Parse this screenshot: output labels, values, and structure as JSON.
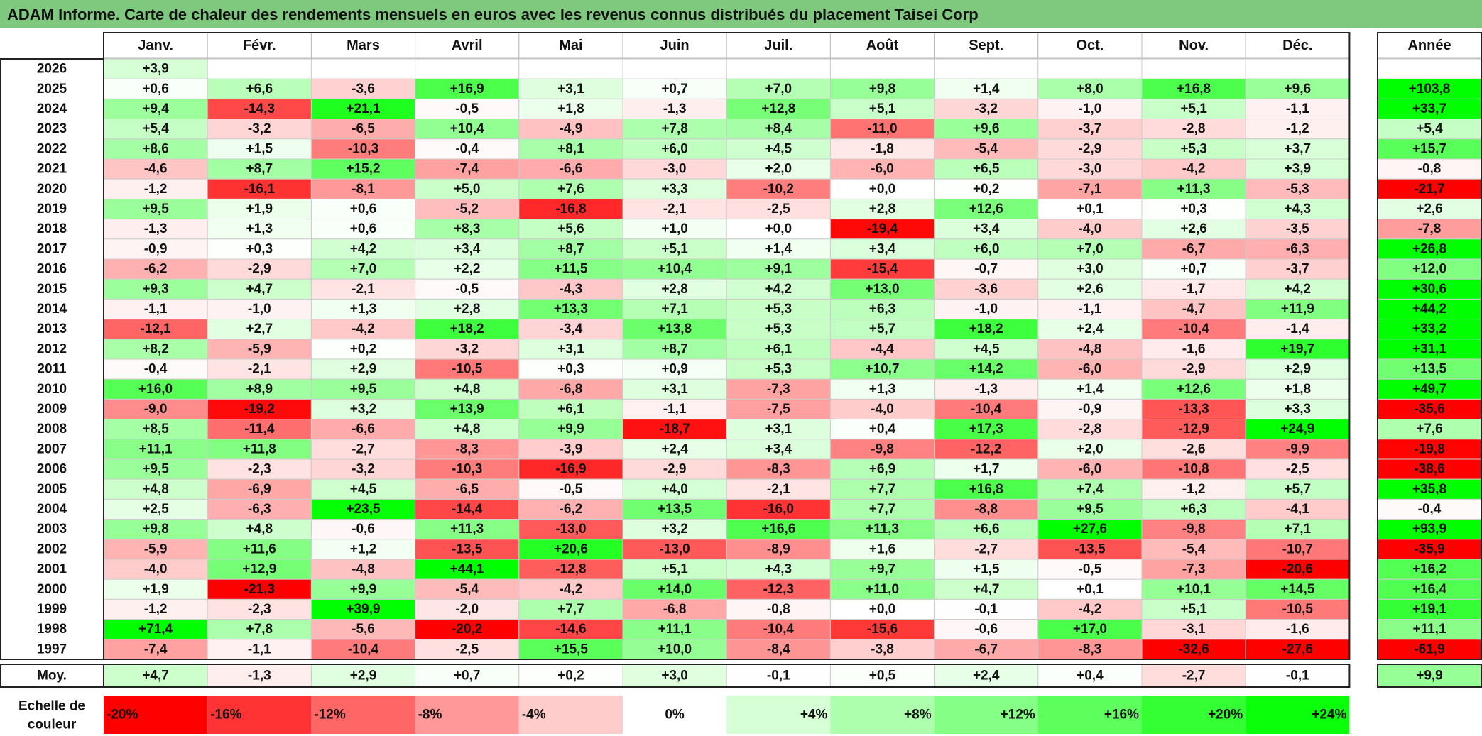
{
  "title": "ADAM Informe. Carte de chaleur des rendements mensuels en euros avec les revenus connus distribués du placement Taisei Corp",
  "chart_data": {
    "type": "heatmap",
    "months": [
      "Janv.",
      "Févr.",
      "Mars",
      "Avril",
      "Mai",
      "Juin",
      "Juil.",
      "Août",
      "Sept.",
      "Oct.",
      "Nov.",
      "Déc."
    ],
    "year_header": "Année",
    "average_label": "Moy.",
    "scale_label_line1": "Echelle de",
    "scale_label_line2": "couleur",
    "rows": [
      {
        "year": "2026",
        "values": [
          "+3,9",
          "",
          "",
          "",
          "",
          "",
          "",
          "",
          "",
          "",
          "",
          ""
        ],
        "total": ""
      },
      {
        "year": "2025",
        "values": [
          "+0,6",
          "+6,6",
          "-3,6",
          "+16,9",
          "+3,1",
          "+0,7",
          "+7,0",
          "+9,8",
          "+1,4",
          "+8,0",
          "+16,8",
          "+9,6"
        ],
        "total": "+103,8"
      },
      {
        "year": "2024",
        "values": [
          "+9,4",
          "-14,3",
          "+21,1",
          "-0,5",
          "+1,8",
          "-1,3",
          "+12,8",
          "+5,1",
          "-3,2",
          "-1,0",
          "+5,1",
          "-1,1"
        ],
        "total": "+33,7"
      },
      {
        "year": "2023",
        "values": [
          "+5,4",
          "-3,2",
          "-6,5",
          "+10,4",
          "-4,9",
          "+7,8",
          "+8,4",
          "-11,0",
          "+9,6",
          "-3,7",
          "-2,8",
          "-1,2"
        ],
        "total": "+5,4"
      },
      {
        "year": "2022",
        "values": [
          "+8,6",
          "+1,5",
          "-10,3",
          "-0,4",
          "+8,1",
          "+6,0",
          "+4,5",
          "-1,8",
          "-5,4",
          "-2,9",
          "+5,3",
          "+3,7"
        ],
        "total": "+15,7"
      },
      {
        "year": "2021",
        "values": [
          "-4,6",
          "+8,7",
          "+15,2",
          "-7,4",
          "-6,6",
          "-3,0",
          "+2,0",
          "-6,0",
          "+6,5",
          "-3,0",
          "-4,2",
          "+3,9"
        ],
        "total": "-0,8"
      },
      {
        "year": "2020",
        "values": [
          "-1,2",
          "-16,1",
          "-8,1",
          "+5,0",
          "+7,6",
          "+3,3",
          "-10,2",
          "+0,0",
          "+0,2",
          "-7,1",
          "+11,3",
          "-5,3"
        ],
        "total": "-21,7"
      },
      {
        "year": "2019",
        "values": [
          "+9,5",
          "+1,9",
          "+0,6",
          "-5,2",
          "-16,8",
          "-2,1",
          "-2,5",
          "+2,8",
          "+12,6",
          "+0,1",
          "+0,3",
          "+4,3"
        ],
        "total": "+2,6"
      },
      {
        "year": "2018",
        "values": [
          "-1,3",
          "+1,3",
          "+0,6",
          "+8,3",
          "+5,6",
          "+1,0",
          "+0,0",
          "-19,4",
          "+3,4",
          "-4,0",
          "+2,6",
          "-3,5"
        ],
        "total": "-7,8"
      },
      {
        "year": "2017",
        "values": [
          "-0,9",
          "+0,3",
          "+4,2",
          "+3,4",
          "+8,7",
          "+5,1",
          "+1,4",
          "+3,4",
          "+6,0",
          "+7,0",
          "-6,7",
          "-6,3"
        ],
        "total": "+26,8"
      },
      {
        "year": "2016",
        "values": [
          "-6,2",
          "-2,9",
          "+7,0",
          "+2,2",
          "+11,5",
          "+10,4",
          "+9,1",
          "-15,4",
          "-0,7",
          "+3,0",
          "+0,7",
          "-3,7"
        ],
        "total": "+12,0"
      },
      {
        "year": "2015",
        "values": [
          "+9,3",
          "+4,7",
          "-2,1",
          "-0,5",
          "-4,3",
          "+2,8",
          "+4,2",
          "+13,0",
          "-3,6",
          "+2,6",
          "-1,7",
          "+4,2"
        ],
        "total": "+30,6"
      },
      {
        "year": "2014",
        "values": [
          "-1,1",
          "-1,0",
          "+1,3",
          "+2,8",
          "+13,3",
          "+7,1",
          "+5,3",
          "+6,3",
          "-1,0",
          "-1,1",
          "-4,7",
          "+11,9"
        ],
        "total": "+44,2"
      },
      {
        "year": "2013",
        "values": [
          "-12,1",
          "+2,7",
          "-4,2",
          "+18,2",
          "-3,4",
          "+13,8",
          "+5,3",
          "+5,7",
          "+18,2",
          "+2,4",
          "-10,4",
          "-1,4"
        ],
        "total": "+33,2"
      },
      {
        "year": "2012",
        "values": [
          "+8,2",
          "-5,9",
          "+0,2",
          "-3,2",
          "+3,1",
          "+8,7",
          "+6,1",
          "-4,4",
          "+4,5",
          "-4,8",
          "-1,6",
          "+19,7"
        ],
        "total": "+31,1"
      },
      {
        "year": "2011",
        "values": [
          "-0,4",
          "-2,1",
          "+2,9",
          "-10,5",
          "+0,3",
          "+0,9",
          "+5,3",
          "+10,7",
          "+14,2",
          "-6,0",
          "-2,9",
          "+2,9"
        ],
        "total": "+13,5"
      },
      {
        "year": "2010",
        "values": [
          "+16,0",
          "+8,9",
          "+9,5",
          "+4,8",
          "-6,8",
          "+3,1",
          "-7,3",
          "+1,3",
          "-1,3",
          "+1,4",
          "+12,6",
          "+1,8"
        ],
        "total": "+49,7"
      },
      {
        "year": "2009",
        "values": [
          "-9,0",
          "-19,2",
          "+3,2",
          "+13,9",
          "+6,1",
          "-1,1",
          "-7,5",
          "-4,0",
          "-10,4",
          "-0,9",
          "-13,3",
          "+3,3"
        ],
        "total": "-35,6"
      },
      {
        "year": "2008",
        "values": [
          "+8,5",
          "-11,4",
          "-6,6",
          "+4,8",
          "+9,9",
          "-18,7",
          "+3,1",
          "+0,4",
          "+17,3",
          "-2,8",
          "-12,9",
          "+24,9"
        ],
        "total": "+7,6"
      },
      {
        "year": "2007",
        "values": [
          "+11,1",
          "+11,8",
          "-2,7",
          "-8,3",
          "-3,9",
          "+2,4",
          "+3,4",
          "-9,8",
          "-12,2",
          "+2,0",
          "-2,6",
          "-9,9"
        ],
        "total": "-19,8"
      },
      {
        "year": "2006",
        "values": [
          "+9,5",
          "-2,3",
          "-3,2",
          "-10,3",
          "-16,9",
          "-2,9",
          "-8,3",
          "+6,9",
          "+1,7",
          "-6,0",
          "-10,8",
          "-2,5"
        ],
        "total": "-38,6"
      },
      {
        "year": "2005",
        "values": [
          "+4,8",
          "-6,9",
          "+4,5",
          "-6,5",
          "-0,5",
          "+4,0",
          "-2,1",
          "+7,7",
          "+16,8",
          "+7,4",
          "-1,2",
          "+5,7"
        ],
        "total": "+35,8"
      },
      {
        "year": "2004",
        "values": [
          "+2,5",
          "-6,3",
          "+23,5",
          "-14,4",
          "-6,2",
          "+13,5",
          "-16,0",
          "+7,7",
          "-8,8",
          "+9,5",
          "+6,3",
          "-4,1"
        ],
        "total": "-0,4"
      },
      {
        "year": "2003",
        "values": [
          "+9,8",
          "+4,8",
          "-0,6",
          "+11,3",
          "-13,0",
          "+3,2",
          "+16,6",
          "+11,3",
          "+6,6",
          "+27,6",
          "-9,8",
          "+7,1"
        ],
        "total": "+93,9"
      },
      {
        "year": "2002",
        "values": [
          "-5,9",
          "+11,6",
          "+1,2",
          "-13,5",
          "+20,6",
          "-13,0",
          "-8,9",
          "+1,6",
          "-2,7",
          "-13,5",
          "-5,4",
          "-10,7"
        ],
        "total": "-35,9"
      },
      {
        "year": "2001",
        "values": [
          "-4,0",
          "+12,9",
          "-4,8",
          "+44,1",
          "-12,8",
          "+5,1",
          "+4,3",
          "+9,7",
          "+1,5",
          "-0,5",
          "-7,3",
          "-20,6"
        ],
        "total": "+16,2"
      },
      {
        "year": "2000",
        "values": [
          "+1,9",
          "-21,3",
          "+9,9",
          "-5,4",
          "-4,2",
          "+14,0",
          "-12,3",
          "+11,0",
          "+4,7",
          "+0,1",
          "+10,1",
          "+14,5"
        ],
        "total": "+16,4"
      },
      {
        "year": "1999",
        "values": [
          "-1,2",
          "-2,3",
          "+39,9",
          "-2,0",
          "+7,7",
          "-6,8",
          "-0,8",
          "+0,0",
          "-0,1",
          "-4,2",
          "+5,1",
          "-10,5"
        ],
        "total": "+19,1"
      },
      {
        "year": "1998",
        "values": [
          "+71,4",
          "+7,8",
          "-5,6",
          "-20,2",
          "-14,6",
          "+11,1",
          "-10,4",
          "-15,6",
          "-0,6",
          "+17,0",
          "-3,1",
          "-1,6"
        ],
        "total": "+11,1"
      },
      {
        "year": "1997",
        "values": [
          "-7,4",
          "-1,1",
          "-10,4",
          "-2,5",
          "+15,5",
          "+10,0",
          "-8,4",
          "-3,8",
          "-6,7",
          "-8,3",
          "-32,6",
          "-27,6"
        ],
        "total": "-61,9"
      }
    ],
    "averages": {
      "values": [
        "+4,7",
        "-1,3",
        "+2,9",
        "+0,7",
        "+0,2",
        "+3,0",
        "-0,1",
        "+0,5",
        "+2,4",
        "+0,4",
        "-2,7",
        "-0,1"
      ],
      "total": "+9,9"
    },
    "color_scale": [
      {
        "label": "-20%",
        "value": -20,
        "color": "#ff0000"
      },
      {
        "label": "-16%",
        "value": -16,
        "color": "#ff3333"
      },
      {
        "label": "-12%",
        "value": -12,
        "color": "#ff6666"
      },
      {
        "label": "-8%",
        "value": -8,
        "color": "#ff9999"
      },
      {
        "label": "-4%",
        "value": -4,
        "color": "#ffcccc"
      },
      {
        "label": "0%",
        "value": 0,
        "color": "#ffffff"
      },
      {
        "label": "+4%",
        "value": 4,
        "color": "#d6ffd6"
      },
      {
        "label": "+8%",
        "value": 8,
        "color": "#adffad"
      },
      {
        "label": "+12%",
        "value": 12,
        "color": "#85ff85"
      },
      {
        "label": "+16%",
        "value": 16,
        "color": "#5cff5c"
      },
      {
        "label": "+20%",
        "value": 20,
        "color": "#33ff33"
      },
      {
        "label": "+24%",
        "value": 24,
        "color": "#0aff0a"
      }
    ],
    "colors": {
      "negative_full": "#ff0000",
      "positive_full": "#00ff00",
      "neutral": "#ffffff",
      "title_background": "#7ec97e"
    }
  }
}
